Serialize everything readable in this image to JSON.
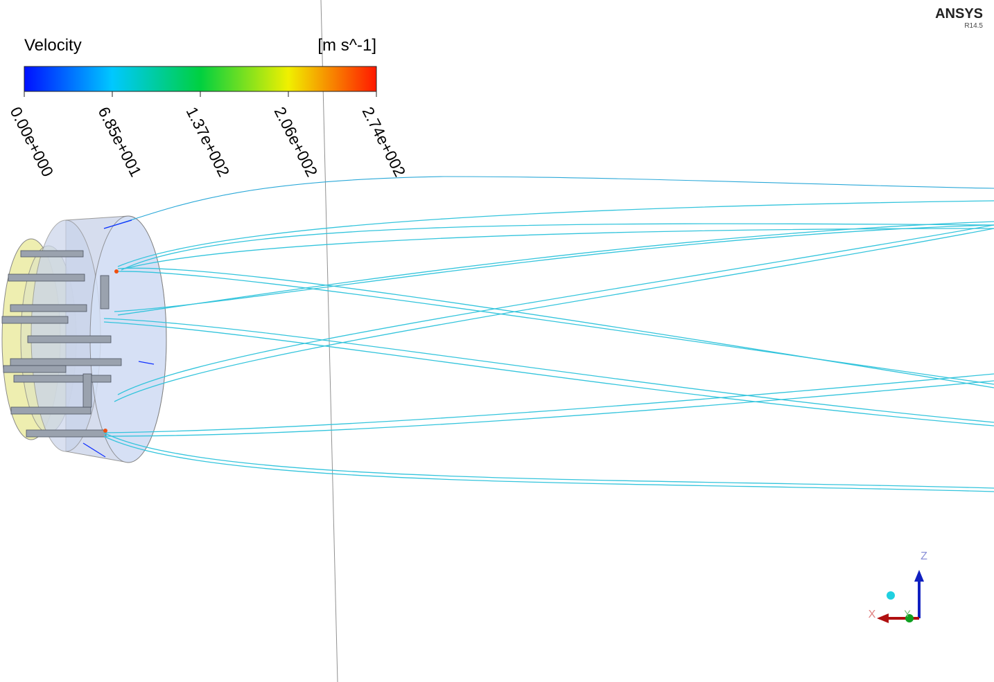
{
  "logo": {
    "name": "ANSYS",
    "version": "R14.5"
  },
  "legend": {
    "title": "Velocity",
    "unit": "[m s^-1]",
    "tick_labels": [
      "0.00e+000",
      "6.85e+001",
      "1.37e+002",
      "2.06e+002",
      "2.74e+002"
    ]
  },
  "triad": {
    "z": "Z",
    "x": "X",
    "y": "Y"
  }
}
